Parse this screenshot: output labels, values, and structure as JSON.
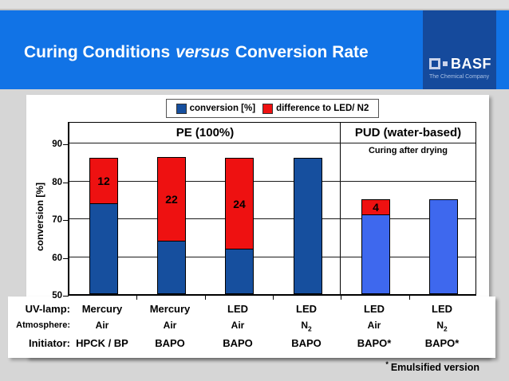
{
  "header": {
    "title_part1": "Curing Conditions",
    "title_versus": "versus",
    "title_part2": "Conversion Rate"
  },
  "logo": {
    "name": "BASF",
    "tagline": "The Chemical Company"
  },
  "legend": {
    "items": [
      {
        "label": "conversion [%]",
        "color": "#164f9e"
      },
      {
        "label": "difference to LED/ N2",
        "color": "#ee1111"
      }
    ]
  },
  "chart_data": {
    "type": "stacked-bar",
    "title": "Curing Conditions versus Conversion Rate",
    "ylabel": "conversion [%]",
    "ylim": [
      50,
      90
    ],
    "yticks": [
      50,
      60,
      70,
      80,
      90
    ],
    "grid": true,
    "legend_position": "top",
    "section_left": {
      "label": "PE (100%)"
    },
    "section_right": {
      "label": "PUD (water-based)",
      "note": "Curing after drying"
    },
    "difference_color": "#ee1111",
    "bars": [
      {
        "uv_lamp": "Mercury",
        "atmosphere": "Air",
        "initiator": "HPCK / BP",
        "conversion": 74,
        "difference_to_led_n2": 12,
        "color": "#164f9e"
      },
      {
        "uv_lamp": "Mercury",
        "atmosphere": "Air",
        "initiator": "BAPO",
        "conversion": 64,
        "difference_to_led_n2": 22,
        "color": "#164f9e"
      },
      {
        "uv_lamp": "LED",
        "atmosphere": "Air",
        "initiator": "BAPO",
        "conversion": 62,
        "difference_to_led_n2": 24,
        "color": "#164f9e"
      },
      {
        "uv_lamp": "LED",
        "atmosphere": "N2",
        "initiator": "BAPO",
        "conversion": 86,
        "difference_to_led_n2": 0,
        "color": "#164f9e"
      },
      {
        "uv_lamp": "LED",
        "atmosphere": "Air",
        "initiator": "BAPO*",
        "conversion": 71,
        "difference_to_led_n2": 4,
        "color": "#3e68ee"
      },
      {
        "uv_lamp": "LED",
        "atmosphere": "N2",
        "initiator": "BAPO*",
        "conversion": 75,
        "difference_to_led_n2": 0,
        "color": "#3e68ee"
      }
    ]
  },
  "xaxis": {
    "row_lamp": "UV-lamp:",
    "row_atmosphere": "Atmosphere:",
    "row_initiator": "Initiator:"
  },
  "footnote": {
    "star": "*",
    "text": "Emulsified version"
  }
}
